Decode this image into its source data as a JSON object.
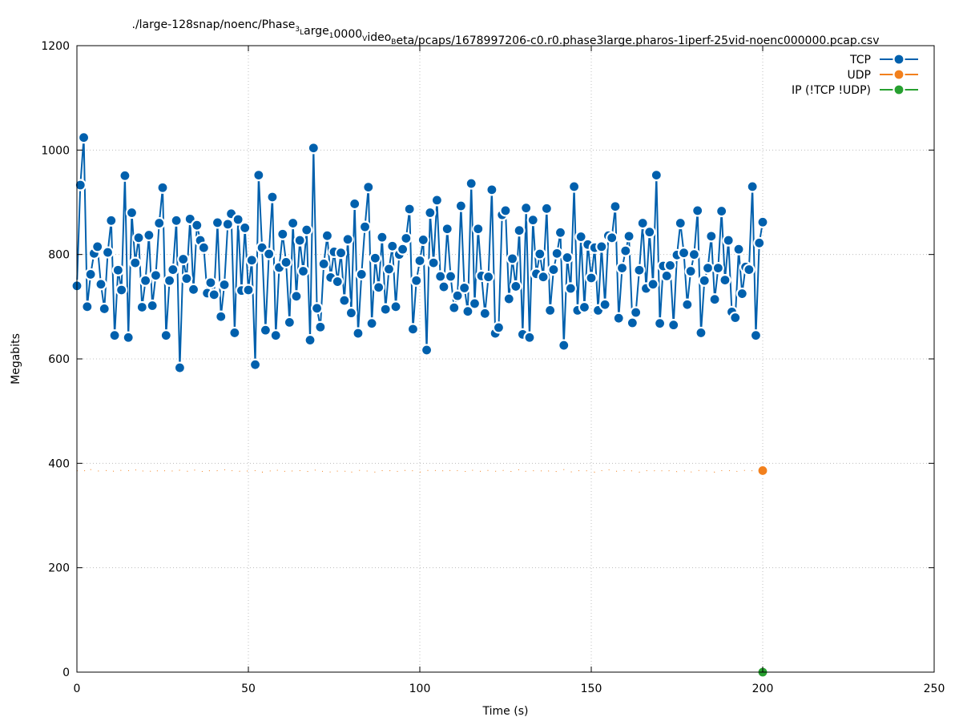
{
  "chart_data": {
    "type": "line",
    "title_parts": [
      {
        "t": "./large-128snap/noenc/Phase",
        "sub": false
      },
      {
        "t": "3",
        "sub": true
      },
      {
        "t": "L",
        "sub": true
      },
      {
        "t": "arge",
        "sub": false
      },
      {
        "t": "1",
        "sub": true
      },
      {
        "t": "0000",
        "sub": false
      },
      {
        "t": "V",
        "sub": true
      },
      {
        "t": "ideo",
        "sub": false
      },
      {
        "t": "B",
        "sub": true
      },
      {
        "t": "eta/pcaps/1678997206-c0.r0.phase3large.pharos-1iperf-25vid-noenc000000.pcap.csv",
        "sub": false
      }
    ],
    "xlabel": "Time (s)",
    "ylabel": "Megabits",
    "xlim": [
      0,
      250
    ],
    "ylim": [
      0,
      1200
    ],
    "xticks": [
      0,
      50,
      100,
      150,
      200,
      250
    ],
    "yticks": [
      0,
      200,
      400,
      600,
      800,
      1000,
      1200
    ],
    "grid": true,
    "legend_position": "top-right",
    "series": [
      {
        "name": "TCP",
        "color": "#0060ad",
        "x_start": 0,
        "x_step": 1,
        "markers": true,
        "values": [
          740,
          933,
          1024,
          700,
          762,
          802,
          815,
          743,
          696,
          804,
          865,
          645,
          770,
          732,
          951,
          641,
          880,
          784,
          832,
          699,
          750,
          837,
          702,
          760,
          860,
          928,
          645,
          750,
          771,
          865,
          583,
          791,
          754,
          868,
          733,
          856,
          827,
          813,
          726,
          746,
          723,
          861,
          681,
          742,
          858,
          878,
          650,
          867,
          731,
          851,
          732,
          789,
          589,
          952,
          813,
          655,
          801,
          910,
          645,
          775,
          839,
          785,
          670,
          860,
          720,
          827,
          768,
          847,
          636,
          1004,
          697,
          661,
          782,
          836,
          756,
          805,
          748,
          803,
          712,
          829,
          688,
          897,
          649,
          762,
          853,
          929,
          668,
          793,
          737,
          833,
          695,
          772,
          816,
          700,
          800,
          810,
          831,
          887,
          657,
          750,
          788,
          828,
          617,
          880,
          784,
          904,
          758,
          738,
          849,
          758,
          698,
          721,
          893,
          736,
          691,
          936,
          706,
          849,
          759,
          687,
          757,
          924,
          649,
          660,
          876,
          884,
          715,
          792,
          739,
          846,
          647,
          889,
          641,
          866,
          763,
          801,
          757,
          888,
          693,
          771,
          802,
          842,
          626,
          794,
          735,
          930,
          693,
          834,
          699,
          819,
          755,
          813,
          693,
          815,
          704,
          836,
          832,
          892,
          678,
          774,
          807,
          835,
          669,
          689,
          770,
          860,
          735,
          843,
          743,
          952,
          668,
          778,
          759,
          779,
          665,
          799,
          860,
          803,
          704,
          768,
          800,
          884,
          650,
          750,
          774,
          835,
          714,
          774,
          883,
          751,
          827,
          690,
          679,
          810,
          725,
          776,
          771,
          930,
          645,
          822,
          862
        ]
      },
      {
        "name": "UDP",
        "color": "#f2801d",
        "x_start": 0,
        "x_step": 1,
        "markers": false,
        "marker_at_last": true,
        "values": [
          386,
          384,
          387,
          382,
          388,
          385,
          385,
          386,
          385,
          387,
          383,
          386,
          384,
          387,
          385,
          386,
          384,
          388,
          383,
          385,
          386,
          387,
          382,
          386,
          385,
          388,
          384,
          386,
          385,
          383,
          387,
          386,
          385,
          384,
          388,
          385,
          386,
          383,
          387,
          385,
          384,
          386,
          385,
          388,
          384,
          386,
          385,
          383,
          387,
          386,
          385,
          384,
          386,
          387,
          383,
          385,
          386,
          384,
          388,
          385,
          387,
          383,
          386,
          385,
          384,
          386,
          387,
          385,
          383,
          386,
          388,
          384,
          385,
          386,
          383,
          387,
          385,
          386,
          384,
          388,
          383,
          385,
          386,
          387,
          384,
          386,
          385,
          383,
          387,
          386,
          384,
          385,
          388,
          386,
          383,
          385,
          387,
          384,
          386,
          385,
          383,
          386,
          387,
          385,
          384,
          388,
          385,
          386,
          383,
          387,
          384,
          386,
          385,
          385,
          383,
          387,
          386,
          384,
          385,
          388,
          386,
          384,
          385,
          383,
          386,
          387,
          385,
          384,
          386,
          388,
          383,
          385,
          387,
          386,
          384,
          385,
          386,
          383,
          387,
          385,
          384,
          386,
          388,
          385,
          383,
          386,
          387,
          384,
          385,
          386,
          385,
          383,
          387,
          386,
          384,
          388,
          385,
          386,
          383,
          385,
          387,
          384,
          386,
          385,
          383,
          387,
          386,
          385,
          384,
          388,
          385,
          386,
          383,
          387,
          385,
          384,
          386,
          385,
          388,
          383,
          386,
          387,
          385,
          384,
          386,
          385,
          383,
          387,
          386,
          384,
          385,
          388,
          386,
          383,
          385,
          387,
          384,
          386,
          385,
          384,
          386
        ]
      },
      {
        "name": "IP (!TCP  !UDP)",
        "color": "#27a030",
        "x_start": 0,
        "x_step": 1,
        "markers": false,
        "marker_at_last": true,
        "values": [
          0,
          0,
          0,
          0,
          0,
          0,
          0,
          0,
          0,
          0,
          0,
          0,
          0,
          0,
          0,
          0,
          0,
          0,
          0,
          0,
          0,
          0,
          0,
          0,
          0,
          0,
          0,
          0,
          0,
          0,
          0,
          0,
          0,
          0,
          0,
          0,
          0,
          0,
          0,
          0,
          0,
          0,
          0,
          0,
          0,
          0,
          0,
          0,
          0,
          0,
          0,
          0,
          0,
          0,
          0,
          0,
          0,
          0,
          0,
          0,
          0,
          0,
          0,
          0,
          0,
          0,
          0,
          0,
          0,
          0,
          0,
          0,
          0,
          0,
          0,
          0,
          0,
          0,
          0,
          0,
          0,
          0,
          0,
          0,
          0,
          0,
          0,
          0,
          0,
          0,
          0,
          0,
          0,
          0,
          0,
          0,
          0,
          0,
          0,
          0,
          0,
          0,
          0,
          0,
          0,
          0,
          0,
          0,
          0,
          0,
          0,
          0,
          0,
          0,
          0,
          0,
          0,
          0,
          0,
          0,
          0,
          0,
          0,
          0,
          0,
          0,
          0,
          0,
          0,
          0,
          0,
          0,
          0,
          0,
          0,
          0,
          0,
          0,
          0,
          0,
          0,
          0,
          0,
          0,
          0,
          0,
          0,
          0,
          0,
          0,
          0,
          0,
          0,
          0,
          0,
          0,
          0,
          0,
          0,
          0,
          0,
          0,
          0,
          0,
          0,
          0,
          0,
          0,
          0,
          0,
          0,
          0,
          0,
          0,
          0,
          0,
          0,
          0,
          0,
          0,
          0,
          0,
          0,
          0,
          0,
          0,
          0,
          0,
          0,
          0,
          0,
          0,
          0,
          0,
          0,
          0,
          0,
          0,
          0,
          0,
          0
        ]
      }
    ]
  }
}
